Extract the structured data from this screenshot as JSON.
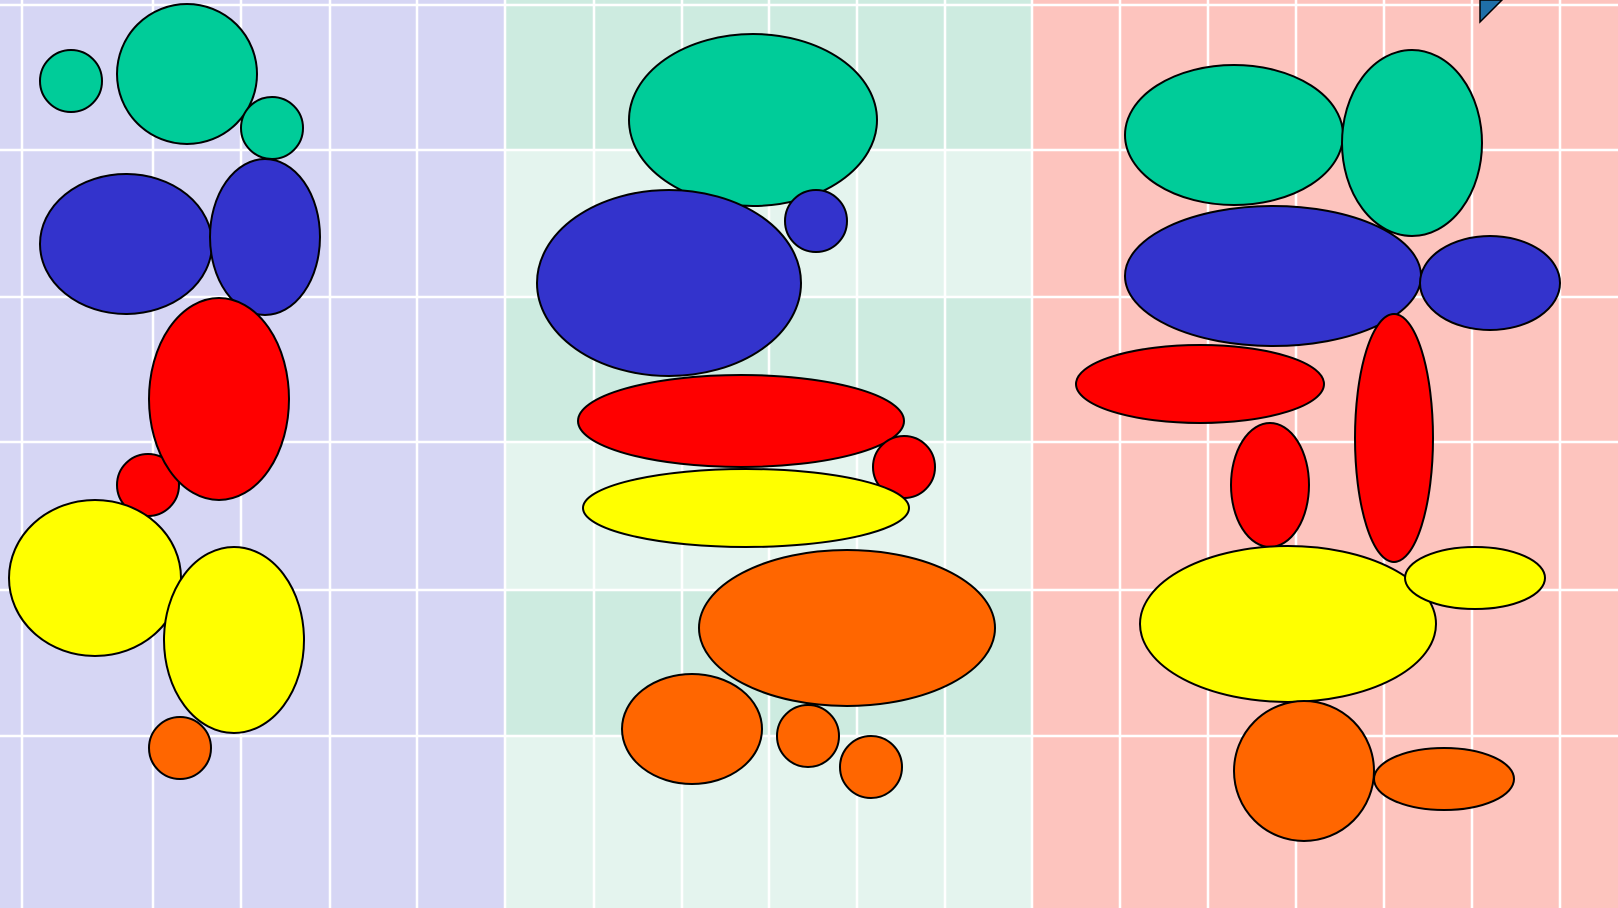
{
  "colors": {
    "panel_left": "#d6d6f4",
    "panel_middle_a": "#cdebe0",
    "panel_middle_b": "#e4f4ee",
    "panel_right": "#fdc4be",
    "grid_line": "#ffffff",
    "outline": "#000000",
    "teal": "#00cc99",
    "blue": "#3333cc",
    "red": "#ff0000",
    "yellow": "#ffff00",
    "orange": "#ff6600",
    "corner_marker": "#1f6fa8"
  },
  "panels": [
    {
      "name": "left",
      "shapes": [
        {
          "color": "teal"
        },
        {
          "color": "teal"
        },
        {
          "color": "teal"
        },
        {
          "color": "blue"
        },
        {
          "color": "blue"
        },
        {
          "color": "red"
        },
        {
          "color": "red"
        },
        {
          "color": "yellow"
        },
        {
          "color": "yellow"
        },
        {
          "color": "orange"
        }
      ]
    },
    {
      "name": "middle",
      "shapes": [
        {
          "color": "teal"
        },
        {
          "color": "blue"
        },
        {
          "color": "blue"
        },
        {
          "color": "red"
        },
        {
          "color": "red"
        },
        {
          "color": "yellow"
        },
        {
          "color": "orange"
        },
        {
          "color": "orange"
        },
        {
          "color": "orange"
        },
        {
          "color": "orange"
        }
      ]
    },
    {
      "name": "right",
      "shapes": [
        {
          "color": "teal"
        },
        {
          "color": "teal"
        },
        {
          "color": "blue"
        },
        {
          "color": "blue"
        },
        {
          "color": "red"
        },
        {
          "color": "red"
        },
        {
          "color": "red"
        },
        {
          "color": "yellow"
        },
        {
          "color": "yellow"
        },
        {
          "color": "orange"
        },
        {
          "color": "orange"
        }
      ]
    }
  ],
  "corner_icon": "triangle-marker-icon"
}
